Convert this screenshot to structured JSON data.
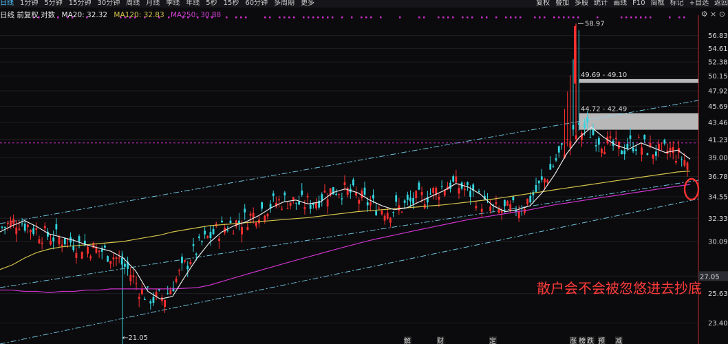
{
  "toolbar": {
    "periods": [
      "日线",
      "1分钟",
      "5分钟",
      "15分钟",
      "30分钟",
      "周线",
      "月线",
      "季线",
      "年线",
      "5秒",
      "15秒",
      "60分钟",
      "多周期",
      "更多"
    ],
    "active_index": 0,
    "right_items": [
      "复权",
      "叠加",
      "多股",
      "统计",
      "画线",
      "F10",
      "简框",
      "标记",
      "+自选",
      "返回"
    ]
  },
  "legend": {
    "title": "日线 前复权 对数",
    "ma20": "MA20: 32.32",
    "ma120": "MA120: 32.83",
    "ma250": "MA250: 30.88",
    "tools": "⚙ × ⊙"
  },
  "annotation": "散户会不会被忽悠进去抄底",
  "colors": {
    "up": "#ff3030",
    "down": "#33d6e0",
    "ma20": "#e8e8e8",
    "ma120": "#d4c24a",
    "ma250": "#cc33cc",
    "channel": "#7fe0ff",
    "hline": "#d22ed2",
    "ring": "#ff3333"
  },
  "chart_data": {
    "type": "candlestick",
    "yscale": "log",
    "ylim": [
      22.5,
      59.0
    ],
    "yticks": [
      "56.83",
      "54.61",
      "52.38",
      "50.15",
      "47.92",
      "45.69",
      "43.46",
      "41.23",
      "39.00",
      "36.78",
      "34.55",
      "32.33",
      "30.09",
      "27.05",
      "25.63",
      "23.40"
    ],
    "last_price": "27.05",
    "high_label": "58.97",
    "low_label": "21.05",
    "zones": [
      {
        "label": "49.69 - 49.10",
        "low": 49.1,
        "high": 49.69
      },
      {
        "label": "44.72 - 42.49",
        "low": 42.49,
        "high": 44.72
      }
    ],
    "hline": 40.8,
    "event_markers": [
      "解",
      "财",
      "定",
      "涨",
      "榜",
      "跌",
      "预",
      "减"
    ],
    "ma20": [
      31.0,
      31.6,
      32.1,
      31.5,
      30.8,
      30.5,
      30.2,
      29.8,
      29.5,
      29.2,
      28.6,
      27.5,
      25.8,
      25.2,
      25.4,
      27.0,
      28.6,
      30.0,
      31.0,
      31.6,
      32.0,
      32.6,
      33.4,
      34.0,
      34.2,
      33.8,
      34.0,
      35.0,
      35.4,
      35.0,
      34.2,
      33.6,
      33.2,
      33.4,
      34.0,
      34.6,
      35.2,
      36.0,
      35.6,
      34.8,
      33.6,
      33.0,
      33.2,
      33.6,
      35.0,
      37.0,
      39.5,
      41.5,
      42.8,
      41.5,
      40.5,
      40.0,
      40.8,
      40.2,
      39.6,
      39.9,
      38.8
    ],
    "ma120": [
      27.6,
      28.0,
      28.6,
      29.1,
      29.4,
      29.6,
      29.7,
      29.8,
      29.9,
      30.0,
      30.1,
      30.3,
      30.5,
      30.7,
      31.0,
      31.2,
      31.4,
      31.6,
      31.7,
      31.8,
      31.9,
      32.0,
      32.1,
      32.2,
      32.3,
      32.4,
      32.55,
      32.7,
      32.85,
      33.0,
      33.1,
      33.2,
      33.3,
      33.4,
      33.5,
      33.6,
      33.7,
      33.85,
      34.0,
      34.15,
      34.3,
      34.5,
      34.7,
      34.9,
      35.1,
      35.3,
      35.5,
      35.7,
      35.9,
      36.1,
      36.3,
      36.5,
      36.7,
      36.9,
      37.1,
      37.3,
      37.4
    ],
    "ma250": [
      25.9,
      25.9,
      25.8,
      25.8,
      25.7,
      25.8,
      25.8,
      25.9,
      25.9,
      26.0,
      26.0,
      26.0,
      26.0,
      26.0,
      26.0,
      26.05,
      26.1,
      26.3,
      26.6,
      26.9,
      27.2,
      27.5,
      27.8,
      28.1,
      28.4,
      28.7,
      29.0,
      29.3,
      29.6,
      29.9,
      30.2,
      30.45,
      30.7,
      30.95,
      31.2,
      31.45,
      31.7,
      31.95,
      32.2,
      32.4,
      32.6,
      32.8,
      33.0,
      33.2,
      33.45,
      33.7,
      33.9,
      34.1,
      34.3,
      34.5,
      34.7,
      34.9,
      35.1,
      35.3,
      35.5,
      35.7,
      35.9
    ]
  }
}
